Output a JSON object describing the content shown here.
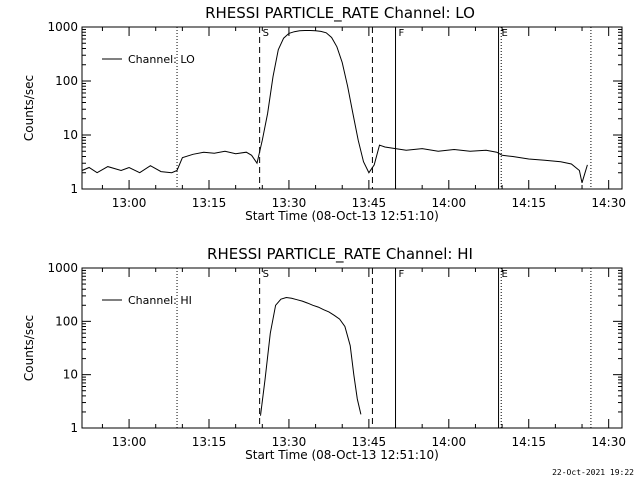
{
  "footer": {
    "timestamp": "22-Oct-2021 19:22"
  },
  "chart_data": [
    {
      "type": "line",
      "title": "RHESSI PARTICLE_RATE Channel: LO",
      "xlabel": "Start Time (08-Oct-13 12:51:10)",
      "ylabel": "Counts/sec",
      "yscale": "log",
      "ylim": [
        1,
        1000
      ],
      "xlim": [
        "12:51:10",
        "14:32:30"
      ],
      "y_tick_labels": [
        "1",
        "10",
        "100",
        "1000"
      ],
      "x_tick_labels": [
        "13:00",
        "13:15",
        "13:30",
        "13:45",
        "14:00",
        "14:15",
        "14:30"
      ],
      "legend": {
        "label": "Channel: LO",
        "position": "top-left"
      },
      "markers": [
        {
          "time": "13:09:00",
          "style": "dotted",
          "label": ""
        },
        {
          "time": "13:24:30",
          "style": "dashed",
          "label": "S"
        },
        {
          "time": "13:45:40",
          "style": "dashed",
          "label": ""
        },
        {
          "time": "13:50:00",
          "style": "solid",
          "label": "F"
        },
        {
          "time": "14:09:20",
          "style": "solid",
          "label": "E"
        },
        {
          "time": "14:09:50",
          "style": "dotted",
          "label": ""
        },
        {
          "time": "14:26:40",
          "style": "dotted",
          "label": ""
        }
      ],
      "series": [
        {
          "name": "Channel: LO",
          "x": [
            "12:51:10",
            "12:52:30",
            "12:54:00",
            "12:56:00",
            "12:58:30",
            "13:00:00",
            "13:02:00",
            "13:04:00",
            "13:06:00",
            "13:08:00",
            "13:09:00",
            "13:10:00",
            "13:12:00",
            "13:14:00",
            "13:16:00",
            "13:18:00",
            "13:20:00",
            "13:22:00",
            "13:23:00",
            "13:24:00",
            "13:25:00",
            "13:26:00",
            "13:27:00",
            "13:28:00",
            "13:29:00",
            "13:30:00",
            "13:31:00",
            "13:32:00",
            "13:33:00",
            "13:34:00",
            "13:35:00",
            "13:36:00",
            "13:37:00",
            "13:38:00",
            "13:39:00",
            "13:40:00",
            "13:41:00",
            "13:42:00",
            "13:43:00",
            "13:44:00",
            "13:45:00",
            "13:46:00",
            "13:47:00",
            "13:48:00",
            "13:50:00",
            "13:52:00",
            "13:55:00",
            "13:58:00",
            "14:01:00",
            "14:04:00",
            "14:07:00",
            "14:09:00",
            "14:10:00",
            "14:12:00",
            "14:15:00",
            "14:18:00",
            "14:21:00",
            "14:23:00",
            "14:24:30",
            "14:25:00",
            "14:26:00"
          ],
          "y": [
            2.2,
            2.5,
            2.0,
            2.6,
            2.2,
            2.5,
            2.0,
            2.7,
            2.1,
            2.0,
            2.2,
            3.8,
            4.4,
            4.8,
            4.6,
            5.0,
            4.5,
            4.8,
            4.2,
            3.0,
            8.0,
            25,
            120,
            380,
            620,
            760,
            820,
            850,
            860,
            860,
            850,
            830,
            780,
            640,
            430,
            220,
            80,
            25,
            8,
            3.2,
            2.0,
            2.8,
            6.5,
            6.0,
            5.6,
            5.2,
            5.6,
            5.0,
            5.4,
            5.0,
            5.2,
            4.8,
            4.2,
            4.0,
            3.6,
            3.4,
            3.2,
            2.9,
            2.2,
            1.3,
            2.8
          ]
        }
      ]
    },
    {
      "type": "line",
      "title": "RHESSI PARTICLE_RATE Channel: HI",
      "xlabel": "Start Time (08-Oct-13 12:51:10)",
      "ylabel": "Counts/sec",
      "yscale": "log",
      "ylim": [
        1,
        1000
      ],
      "xlim": [
        "12:51:10",
        "14:32:30"
      ],
      "y_tick_labels": [
        "1",
        "10",
        "100",
        "1000"
      ],
      "x_tick_labels": [
        "13:00",
        "13:15",
        "13:30",
        "13:45",
        "14:00",
        "14:15",
        "14:30"
      ],
      "legend": {
        "label": "Channel: HI",
        "position": "top-left"
      },
      "markers": [
        {
          "time": "13:09:00",
          "style": "dotted",
          "label": ""
        },
        {
          "time": "13:24:30",
          "style": "dashed",
          "label": "S"
        },
        {
          "time": "13:45:40",
          "style": "dashed",
          "label": ""
        },
        {
          "time": "13:50:00",
          "style": "solid",
          "label": "F"
        },
        {
          "time": "14:09:20",
          "style": "solid",
          "label": "E"
        },
        {
          "time": "14:09:50",
          "style": "dotted",
          "label": ""
        },
        {
          "time": "14:26:40",
          "style": "dotted",
          "label": ""
        }
      ],
      "series": [
        {
          "name": "Channel: HI",
          "x": [
            "13:24:40",
            "13:25:30",
            "13:26:30",
            "13:27:30",
            "13:28:30",
            "13:29:30",
            "13:30:30",
            "13:31:30",
            "13:32:30",
            "13:33:30",
            "13:34:30",
            "13:35:30",
            "13:36:30",
            "13:37:30",
            "13:38:30",
            "13:39:30",
            "13:40:30",
            "13:41:30",
            "13:42:10",
            "13:42:50",
            "13:43:30"
          ],
          "y": [
            1.7,
            8,
            60,
            200,
            260,
            280,
            270,
            255,
            240,
            220,
            200,
            185,
            165,
            150,
            130,
            110,
            80,
            35,
            10,
            3.5,
            1.8
          ]
        }
      ]
    }
  ]
}
